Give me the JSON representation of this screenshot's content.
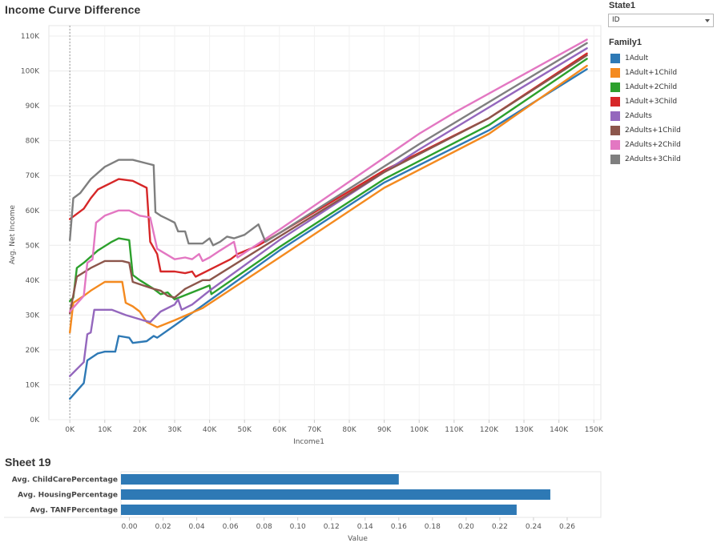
{
  "titles": {
    "main": "Income Curve Difference",
    "sheet": "Sheet 19"
  },
  "filter": {
    "title": "State1",
    "selected": "ID"
  },
  "legend": {
    "title": "Family1"
  },
  "chart_data": [
    {
      "type": "line",
      "title": "Income Curve Difference",
      "xlabel": "Income1",
      "ylabel": "Avg. Net Income",
      "xlim": [
        -6000,
        152000
      ],
      "ylim": [
        0,
        113000
      ],
      "xticks": [
        0,
        10000,
        20000,
        30000,
        40000,
        50000,
        60000,
        70000,
        80000,
        90000,
        100000,
        110000,
        120000,
        130000,
        140000,
        150000
      ],
      "xtick_labels": [
        "0K",
        "10K",
        "20K",
        "30K",
        "40K",
        "50K",
        "60K",
        "70K",
        "80K",
        "90K",
        "100K",
        "110K",
        "120K",
        "130K",
        "140K",
        "150K"
      ],
      "yticks": [
        0,
        10000,
        20000,
        30000,
        40000,
        50000,
        60000,
        70000,
        80000,
        90000,
        100000,
        110000
      ],
      "ytick_labels": [
        "0K",
        "10K",
        "20K",
        "30K",
        "40K",
        "50K",
        "60K",
        "70K",
        "80K",
        "90K",
        "100K",
        "110K"
      ],
      "grid": true,
      "legend_position": "right",
      "series": [
        {
          "name": "1Adult",
          "color": "#2e79b5",
          "points": [
            [
              0,
              6000
            ],
            [
              4000,
              10500
            ],
            [
              5000,
              17000
            ],
            [
              8000,
              19000
            ],
            [
              10000,
              19500
            ],
            [
              13000,
              19500
            ],
            [
              14000,
              24000
            ],
            [
              17000,
              23500
            ],
            [
              18000,
              22000
            ],
            [
              22000,
              22500
            ],
            [
              24000,
              24000
            ],
            [
              25000,
              23500
            ],
            [
              30000,
              27000
            ],
            [
              60000,
              48500
            ],
            [
              90000,
              68000
            ],
            [
              120000,
              83000
            ],
            [
              148000,
              100500
            ]
          ]
        },
        {
          "name": "1Adult+1Child",
          "color": "#f48a1f",
          "points": [
            [
              0,
              25000
            ],
            [
              1000,
              33500
            ],
            [
              4000,
              35500
            ],
            [
              6000,
              37000
            ],
            [
              10000,
              39500
            ],
            [
              15000,
              39500
            ],
            [
              16000,
              33500
            ],
            [
              18000,
              32500
            ],
            [
              20000,
              31000
            ],
            [
              22000,
              28000
            ],
            [
              25000,
              26500
            ],
            [
              30000,
              28500
            ],
            [
              38000,
              32000
            ],
            [
              60000,
              46500
            ],
            [
              90000,
              66500
            ],
            [
              120000,
              82000
            ],
            [
              148000,
              101500
            ]
          ]
        },
        {
          "name": "1Adult+2Child",
          "color": "#2ca02c",
          "points": [
            [
              0,
              34000
            ],
            [
              1000,
              35000
            ],
            [
              2000,
              43500
            ],
            [
              4000,
              45000
            ],
            [
              8000,
              48500
            ],
            [
              12000,
              51000
            ],
            [
              14000,
              52000
            ],
            [
              17000,
              51500
            ],
            [
              18000,
              41500
            ],
            [
              20000,
              40000
            ],
            [
              24000,
              37500
            ],
            [
              26000,
              36000
            ],
            [
              28000,
              36500
            ],
            [
              30000,
              34500
            ],
            [
              40000,
              38500
            ],
            [
              40500,
              36000
            ],
            [
              60000,
              49500
            ],
            [
              90000,
              69000
            ],
            [
              120000,
              84500
            ],
            [
              148000,
              103500
            ]
          ]
        },
        {
          "name": "1Adult+3Child",
          "color": "#d62728",
          "points": [
            [
              0,
              57500
            ],
            [
              4000,
              60500
            ],
            [
              6000,
              63500
            ],
            [
              8000,
              66000
            ],
            [
              12000,
              68000
            ],
            [
              14000,
              69000
            ],
            [
              18000,
              68500
            ],
            [
              22000,
              66500
            ],
            [
              23000,
              51000
            ],
            [
              25000,
              47500
            ],
            [
              26000,
              42500
            ],
            [
              30000,
              42500
            ],
            [
              33000,
              42000
            ],
            [
              35000,
              42500
            ],
            [
              36000,
              41000
            ],
            [
              40000,
              43000
            ],
            [
              46000,
              46000
            ],
            [
              48000,
              47500
            ],
            [
              54000,
              50000
            ],
            [
              60000,
              53500
            ],
            [
              90000,
              71500
            ],
            [
              120000,
              86500
            ],
            [
              148000,
              105000
            ]
          ]
        },
        {
          "name": "2Adults",
          "color": "#9467bd",
          "points": [
            [
              0,
              12500
            ],
            [
              4000,
              16500
            ],
            [
              5000,
              24500
            ],
            [
              6000,
              25000
            ],
            [
              7000,
              31500
            ],
            [
              12000,
              31500
            ],
            [
              16000,
              30000
            ],
            [
              21000,
              28500
            ],
            [
              23000,
              28000
            ],
            [
              26000,
              31000
            ],
            [
              30000,
              33000
            ],
            [
              31000,
              34500
            ],
            [
              32000,
              31500
            ],
            [
              35000,
              33000
            ],
            [
              40000,
              37000
            ],
            [
              60000,
              51500
            ],
            [
              100000,
              77500
            ],
            [
              148000,
              106500
            ]
          ]
        },
        {
          "name": "2Adults+1Child",
          "color": "#8c564b",
          "points": [
            [
              0,
              30500
            ],
            [
              2000,
              41000
            ],
            [
              6000,
              43500
            ],
            [
              10000,
              45500
            ],
            [
              15000,
              45500
            ],
            [
              17000,
              45000
            ],
            [
              18000,
              39500
            ],
            [
              21000,
              38500
            ],
            [
              24000,
              37500
            ],
            [
              26000,
              37000
            ],
            [
              28000,
              35500
            ],
            [
              30000,
              35000
            ],
            [
              33000,
              37500
            ],
            [
              38000,
              40000
            ],
            [
              40000,
              40000
            ],
            [
              60000,
              52500
            ],
            [
              90000,
              71000
            ],
            [
              120000,
              86500
            ],
            [
              148000,
              104500
            ]
          ]
        },
        {
          "name": "2Adults+2Child",
          "color": "#e377c2",
          "points": [
            [
              0,
              31000
            ],
            [
              4000,
              35500
            ],
            [
              5000,
              45000
            ],
            [
              6500,
              46000
            ],
            [
              7500,
              56500
            ],
            [
              10000,
              58500
            ],
            [
              14000,
              60000
            ],
            [
              17000,
              60000
            ],
            [
              20000,
              58500
            ],
            [
              23000,
              58000
            ],
            [
              25000,
              49000
            ],
            [
              30000,
              46000
            ],
            [
              33000,
              46500
            ],
            [
              35000,
              46000
            ],
            [
              37000,
              47500
            ],
            [
              38000,
              45500
            ],
            [
              40000,
              46500
            ],
            [
              43000,
              48500
            ],
            [
              47000,
              51000
            ],
            [
              48000,
              46500
            ],
            [
              60000,
              54500
            ],
            [
              100000,
              82000
            ],
            [
              110000,
              88000
            ],
            [
              148000,
              109000
            ]
          ]
        },
        {
          "name": "2Adults+3Child",
          "color": "#7f7f7f",
          "points": [
            [
              0,
              51500
            ],
            [
              1000,
              63500
            ],
            [
              3000,
              65000
            ],
            [
              6000,
              69000
            ],
            [
              10000,
              72500
            ],
            [
              14000,
              74500
            ],
            [
              18000,
              74500
            ],
            [
              22000,
              73500
            ],
            [
              24000,
              73000
            ],
            [
              24500,
              59500
            ],
            [
              26000,
              58500
            ],
            [
              28000,
              57500
            ],
            [
              30000,
              56500
            ],
            [
              31000,
              54000
            ],
            [
              33000,
              54000
            ],
            [
              34000,
              50500
            ],
            [
              38000,
              50500
            ],
            [
              40000,
              52000
            ],
            [
              41000,
              50000
            ],
            [
              43000,
              51000
            ],
            [
              45000,
              52500
            ],
            [
              47000,
              52000
            ],
            [
              50000,
              53000
            ],
            [
              54000,
              56000
            ],
            [
              56000,
              51000
            ],
            [
              60000,
              53500
            ],
            [
              100000,
              79000
            ],
            [
              148000,
              108000
            ]
          ]
        }
      ]
    },
    {
      "type": "bar",
      "orientation": "horizontal",
      "title": "Sheet 19",
      "xlabel": "Value",
      "categories": [
        "Avg. ChildCarePercentage",
        "Avg. HousingPercentage",
        "Avg. TANFPercentage"
      ],
      "values": [
        0.16,
        0.25,
        0.23
      ],
      "color": "#2e79b5",
      "xlim": [
        -0.005,
        0.28
      ],
      "xticks": [
        0,
        0.02,
        0.04,
        0.06,
        0.08,
        0.1,
        0.12,
        0.14,
        0.16,
        0.18,
        0.2,
        0.22,
        0.24,
        0.26
      ],
      "xtick_labels": [
        "0.00",
        "0.02",
        "0.04",
        "0.06",
        "0.08",
        "0.10",
        "0.12",
        "0.14",
        "0.16",
        "0.18",
        "0.20",
        "0.22",
        "0.24",
        "0.26"
      ]
    }
  ]
}
